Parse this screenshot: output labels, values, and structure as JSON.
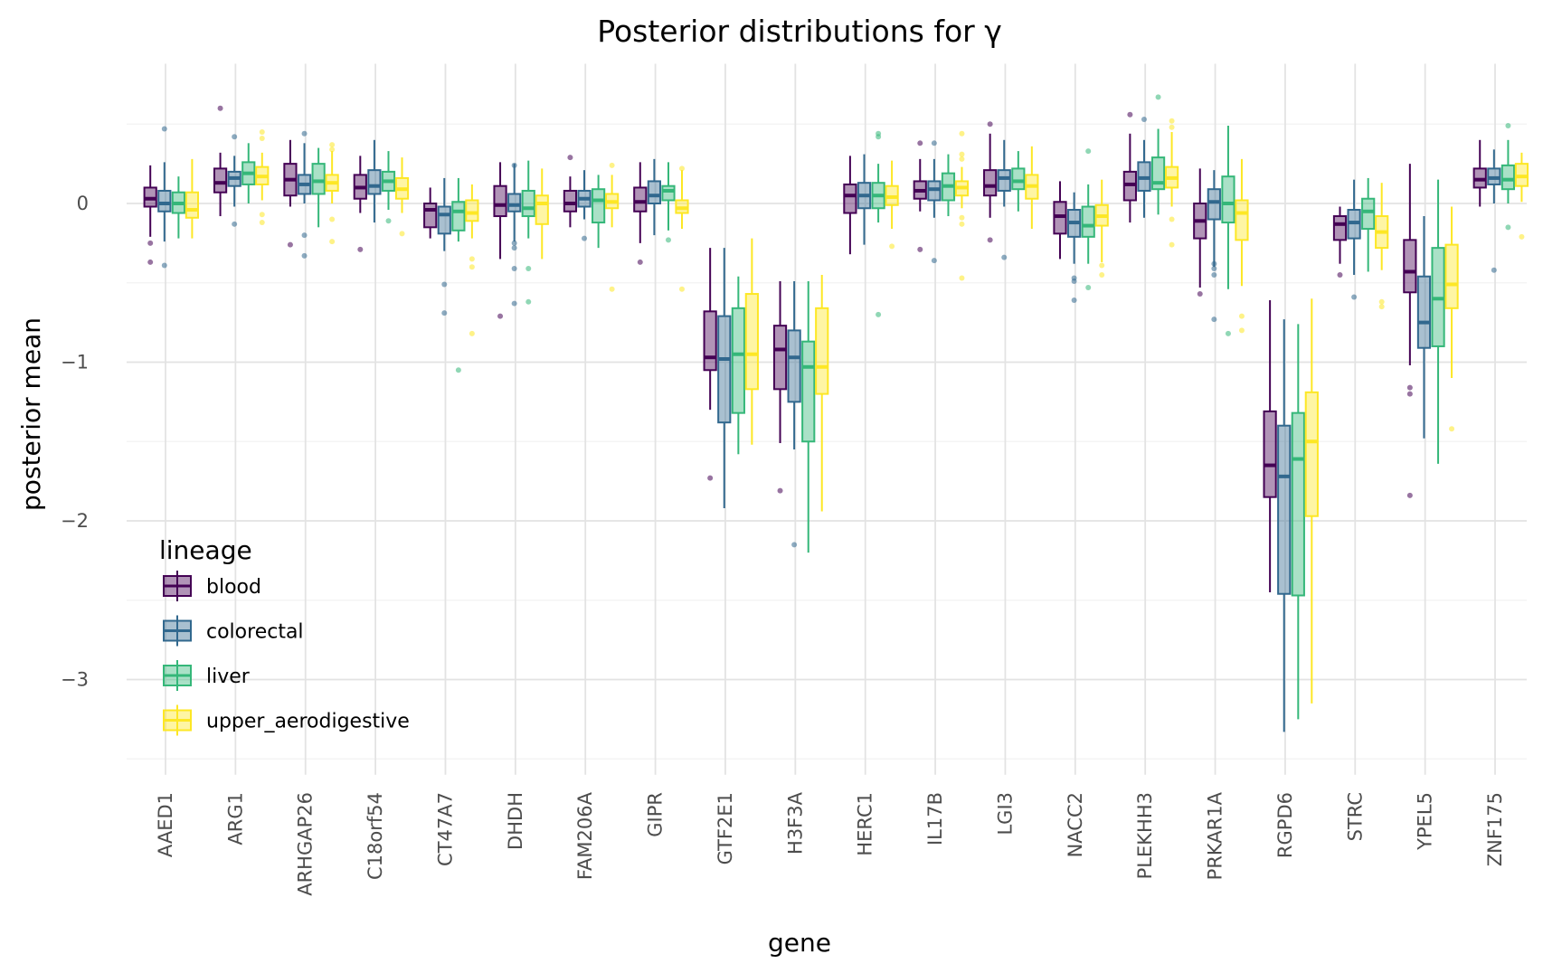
{
  "chart_data": {
    "type": "boxplot",
    "title": "Posterior distributions for γ",
    "xlabel": "gene",
    "ylabel": "posterior mean",
    "ylim": [
      -3.6,
      0.88
    ],
    "yticks": [
      {
        "value": 0,
        "label": "0"
      },
      {
        "value": -1,
        "label": "−1"
      },
      {
        "value": -2,
        "label": "−2"
      },
      {
        "value": -3,
        "label": "−3"
      }
    ],
    "grid": true,
    "legend": {
      "title": "lineage",
      "position": "bottom-left inside"
    },
    "series": [
      {
        "name": "blood",
        "color": "#440154"
      },
      {
        "name": "colorectal",
        "color": "#31688e"
      },
      {
        "name": "liver",
        "color": "#35b779"
      },
      {
        "name": "upper_aerodigestive",
        "color": "#fde725"
      }
    ],
    "categories": [
      "AAED1",
      "ARG1",
      "ARHGAP26",
      "C18orf54",
      "CT47A7",
      "DHDH",
      "FAM206A",
      "GIPR",
      "GTF2E1",
      "H3F3A",
      "HERC1",
      "IL17B",
      "LGI3",
      "NACC2",
      "PLEKHH3",
      "PRKAR1A",
      "RGPD6",
      "STRC",
      "YPEL5",
      "ZNF175"
    ],
    "boxes": [
      [
        [
          -0.21,
          -0.02,
          0.03,
          0.1,
          0.24
        ],
        [
          -0.24,
          -0.05,
          0.0,
          0.08,
          0.26
        ],
        [
          -0.22,
          -0.06,
          0.0,
          0.07,
          0.17
        ],
        [
          -0.22,
          -0.09,
          -0.04,
          0.07,
          0.28
        ]
      ],
      [
        [
          -0.08,
          0.07,
          0.13,
          0.22,
          0.32
        ],
        [
          -0.02,
          0.11,
          0.16,
          0.2,
          0.3
        ],
        [
          0.0,
          0.12,
          0.19,
          0.26,
          0.38
        ],
        [
          0.02,
          0.12,
          0.17,
          0.23,
          0.32
        ]
      ],
      [
        [
          -0.02,
          0.05,
          0.15,
          0.25,
          0.4
        ],
        [
          0.0,
          0.06,
          0.12,
          0.18,
          0.38
        ],
        [
          -0.15,
          0.06,
          0.14,
          0.25,
          0.35
        ],
        [
          0.0,
          0.08,
          0.13,
          0.18,
          0.33
        ]
      ],
      [
        [
          -0.06,
          0.03,
          0.1,
          0.18,
          0.3
        ],
        [
          -0.12,
          0.06,
          0.11,
          0.21,
          0.4
        ],
        [
          -0.04,
          0.08,
          0.14,
          0.2,
          0.33
        ],
        [
          -0.06,
          0.03,
          0.09,
          0.16,
          0.29
        ]
      ],
      [
        [
          -0.22,
          -0.15,
          -0.04,
          0.0,
          0.1
        ],
        [
          -0.3,
          -0.19,
          -0.07,
          -0.02,
          0.16
        ],
        [
          -0.24,
          -0.17,
          -0.05,
          0.01,
          0.16
        ],
        [
          -0.22,
          -0.11,
          -0.06,
          0.02,
          0.12
        ]
      ],
      [
        [
          -0.35,
          -0.08,
          -0.01,
          0.11,
          0.26
        ],
        [
          -0.24,
          -0.05,
          -0.01,
          0.06,
          0.25
        ],
        [
          -0.22,
          -0.08,
          -0.03,
          0.08,
          0.27
        ],
        [
          -0.35,
          -0.13,
          0.0,
          0.05,
          0.22
        ]
      ],
      [
        [
          -0.15,
          -0.05,
          0.0,
          0.08,
          0.17
        ],
        [
          -0.1,
          -0.02,
          0.03,
          0.08,
          0.21
        ],
        [
          -0.28,
          -0.12,
          0.02,
          0.09,
          0.18
        ],
        [
          -0.15,
          -0.03,
          0.01,
          0.06,
          0.18
        ]
      ],
      [
        [
          -0.25,
          -0.05,
          0.01,
          0.1,
          0.26
        ],
        [
          -0.2,
          0.0,
          0.05,
          0.14,
          0.28
        ],
        [
          -0.17,
          0.02,
          0.08,
          0.11,
          0.26
        ],
        [
          -0.16,
          -0.06,
          -0.03,
          0.02,
          0.21
        ]
      ],
      [
        [
          -1.3,
          -1.05,
          -0.97,
          -0.68,
          -0.28
        ],
        [
          -1.92,
          -1.38,
          -0.98,
          -0.71,
          -0.28
        ],
        [
          -1.58,
          -1.32,
          -0.95,
          -0.66,
          -0.46
        ],
        [
          -1.52,
          -1.17,
          -0.95,
          -0.57,
          -0.22
        ]
      ],
      [
        [
          -1.51,
          -1.17,
          -0.92,
          -0.77,
          -0.49
        ],
        [
          -1.55,
          -1.25,
          -0.97,
          -0.8,
          -0.49
        ],
        [
          -2.2,
          -1.5,
          -1.03,
          -0.87,
          -0.49
        ],
        [
          -1.94,
          -1.2,
          -1.03,
          -0.66,
          -0.45
        ]
      ],
      [
        [
          -0.32,
          -0.06,
          0.05,
          0.12,
          0.3
        ],
        [
          -0.26,
          -0.03,
          0.05,
          0.13,
          0.31
        ],
        [
          -0.12,
          -0.03,
          0.05,
          0.13,
          0.25
        ],
        [
          -0.16,
          -0.01,
          0.04,
          0.11,
          0.27
        ]
      ],
      [
        [
          -0.05,
          0.03,
          0.08,
          0.14,
          0.28
        ],
        [
          -0.09,
          0.02,
          0.09,
          0.14,
          0.28
        ],
        [
          -0.08,
          0.02,
          0.11,
          0.19,
          0.31
        ],
        [
          -0.03,
          0.05,
          0.1,
          0.14,
          0.23
        ]
      ],
      [
        [
          -0.09,
          0.05,
          0.11,
          0.21,
          0.44
        ],
        [
          -0.02,
          0.08,
          0.16,
          0.21,
          0.4
        ],
        [
          -0.05,
          0.09,
          0.14,
          0.22,
          0.33
        ],
        [
          -0.16,
          0.03,
          0.11,
          0.18,
          0.36
        ]
      ],
      [
        [
          -0.35,
          -0.19,
          -0.08,
          0.01,
          0.14
        ],
        [
          -0.38,
          -0.21,
          -0.12,
          -0.04,
          0.07
        ],
        [
          -0.38,
          -0.21,
          -0.14,
          -0.02,
          0.12
        ],
        [
          -0.37,
          -0.14,
          -0.08,
          -0.01,
          0.15
        ]
      ],
      [
        [
          -0.12,
          0.02,
          0.12,
          0.2,
          0.44
        ],
        [
          -0.09,
          0.08,
          0.16,
          0.26,
          0.4
        ],
        [
          -0.07,
          0.09,
          0.13,
          0.29,
          0.47
        ],
        [
          -0.02,
          0.1,
          0.16,
          0.23,
          0.45
        ]
      ],
      [
        [
          -0.53,
          -0.22,
          -0.11,
          0.0,
          0.22
        ],
        [
          -0.4,
          -0.1,
          0.01,
          0.09,
          0.21
        ],
        [
          -0.54,
          -0.12,
          0.0,
          0.17,
          0.49
        ],
        [
          -0.52,
          -0.23,
          -0.06,
          0.02,
          0.28
        ]
      ],
      [
        [
          -2.45,
          -1.85,
          -1.65,
          -1.31,
          -0.61
        ],
        [
          -3.33,
          -2.46,
          -1.72,
          -1.4,
          -0.73
        ],
        [
          -3.25,
          -2.47,
          -1.61,
          -1.32,
          -0.76
        ],
        [
          -3.15,
          -1.97,
          -1.5,
          -1.19,
          -0.6
        ]
      ],
      [
        [
          -0.38,
          -0.23,
          -0.13,
          -0.08,
          -0.02
        ],
        [
          -0.45,
          -0.22,
          -0.12,
          -0.04,
          0.15
        ],
        [
          -0.43,
          -0.16,
          -0.05,
          0.03,
          0.16
        ],
        [
          -0.42,
          -0.28,
          -0.18,
          -0.08,
          0.13
        ]
      ],
      [
        [
          -1.02,
          -0.56,
          -0.43,
          -0.23,
          0.25
        ],
        [
          -1.48,
          -0.91,
          -0.75,
          -0.46,
          -0.08
        ],
        [
          -1.64,
          -0.9,
          -0.6,
          -0.28,
          0.15
        ],
        [
          -1.1,
          -0.66,
          -0.51,
          -0.26,
          -0.02
        ]
      ],
      [
        [
          -0.02,
          0.1,
          0.15,
          0.22,
          0.4
        ],
        [
          0.0,
          0.12,
          0.16,
          0.22,
          0.34
        ],
        [
          0.0,
          0.09,
          0.15,
          0.24,
          0.4
        ],
        [
          0.01,
          0.11,
          0.17,
          0.25,
          0.32
        ]
      ]
    ],
    "outliers": [
      [
        [
          -0.25,
          -0.37
        ],
        [
          0.47,
          -0.39
        ],
        [],
        []
      ],
      [
        [
          0.6
        ],
        [
          0.42,
          -0.13
        ],
        [],
        [
          0.45,
          0.41,
          -0.07,
          -0.12
        ]
      ],
      [
        [
          -0.26
        ],
        [
          0.44,
          -0.2,
          -0.33
        ],
        [],
        [
          0.37,
          0.34,
          -0.1,
          -0.24
        ]
      ],
      [
        [
          -0.29
        ],
        [],
        [
          -0.11
        ],
        [
          -0.19
        ]
      ],
      [
        [],
        [
          -0.51,
          -0.69
        ],
        [
          -1.05
        ],
        [
          -0.35,
          -0.4,
          -0.82
        ]
      ],
      [
        [
          -0.71
        ],
        [
          0.24,
          -0.25,
          -0.28,
          -0.41,
          -0.63
        ],
        [
          -0.41,
          -0.62
        ],
        []
      ],
      [
        [
          0.29
        ],
        [
          -0.22
        ],
        [],
        [
          0.24,
          -0.54
        ]
      ],
      [
        [
          -0.37
        ],
        [],
        [
          -0.23
        ],
        [
          0.22,
          -0.54
        ]
      ],
      [
        [
          -1.73
        ],
        [],
        [],
        []
      ],
      [
        [
          -1.81
        ],
        [
          -2.15
        ],
        [],
        []
      ],
      [
        [],
        [],
        [
          0.44,
          0.42,
          -0.7
        ],
        [
          -0.27
        ]
      ],
      [
        [
          0.38,
          -0.29
        ],
        [
          0.38,
          -0.36
        ],
        [],
        [
          0.44,
          0.31,
          0.28,
          -0.09,
          -0.13,
          -0.47
        ]
      ],
      [
        [
          0.5,
          -0.23
        ],
        [
          -0.34
        ],
        [],
        []
      ],
      [
        [],
        [
          -0.47,
          -0.49,
          -0.61
        ],
        [
          0.33,
          -0.53
        ],
        [
          -0.39,
          -0.45
        ]
      ],
      [
        [
          0.56
        ],
        [
          0.53
        ],
        [
          0.67
        ],
        [
          0.52,
          0.48,
          -0.1,
          -0.26
        ]
      ],
      [
        [
          -0.57
        ],
        [
          -0.38,
          -0.41,
          -0.45,
          -0.73
        ],
        [
          -0.82
        ],
        [
          -0.71,
          -0.8
        ]
      ],
      [
        [],
        [],
        [],
        []
      ],
      [
        [
          -0.45
        ],
        [
          -0.59
        ],
        [],
        [
          -0.62,
          -0.65
        ]
      ],
      [
        [
          -1.16,
          -1.2,
          -1.84
        ],
        [],
        [],
        [
          -1.42
        ]
      ],
      [
        [],
        [
          -0.42
        ],
        [
          0.49,
          -0.15
        ],
        [
          -0.21
        ]
      ]
    ]
  }
}
